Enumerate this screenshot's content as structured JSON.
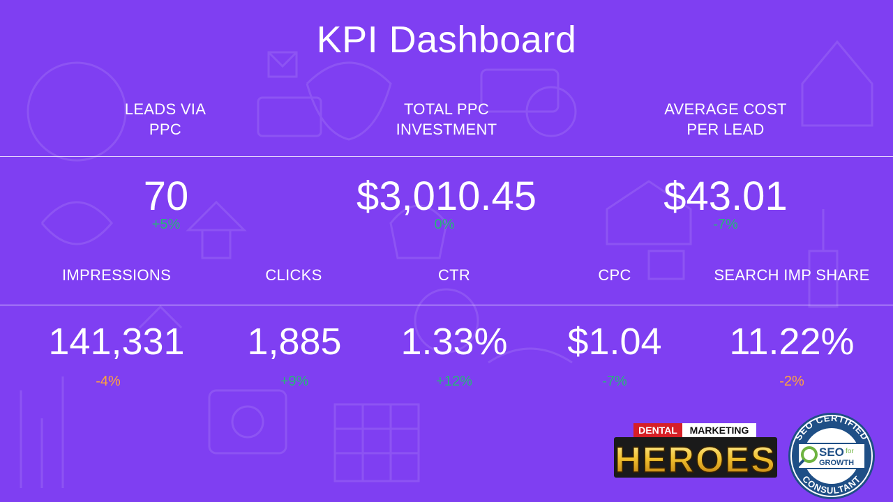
{
  "title": "KPI Dashboard",
  "top_metrics": [
    {
      "label_line1": "LEADS VIA",
      "label_line2": "PPC",
      "value": "70",
      "change": "+5%"
    },
    {
      "label_line1": "TOTAL PPC",
      "label_line2": "INVESTMENT",
      "value": "$3,010.45",
      "change": "0%"
    },
    {
      "label_line1": "AVERAGE COST",
      "label_line2": "PER LEAD",
      "value": "$43.01",
      "change": "-7%"
    }
  ],
  "bottom_metrics": [
    {
      "label": "IMPRESSIONS",
      "value": "141,331",
      "change": "-4%"
    },
    {
      "label": "CLICKS",
      "value": "1,885",
      "change": "+9%"
    },
    {
      "label": "CTR",
      "value": "1.33%",
      "change": "+12%"
    },
    {
      "label": "CPC",
      "value": "$1.04",
      "change": "-7%"
    },
    {
      "label": "SEARCH IMP SHARE",
      "value": "11.22%",
      "change": "-2%"
    }
  ],
  "colors": {
    "background": "#7f3ff2",
    "positive": "#27b47a",
    "negative": "#ffa43c"
  },
  "logos": {
    "dmh_line1_a": "DENTAL",
    "dmh_line1_b": "MARKETING",
    "dmh_line2": "HEROES",
    "badge_top": "SEO CERTIFIED",
    "badge_bottom": "CONSULTANT",
    "badge_mid1": "SEO",
    "badge_mid_for": "for",
    "badge_mid2": "GROWTH"
  }
}
